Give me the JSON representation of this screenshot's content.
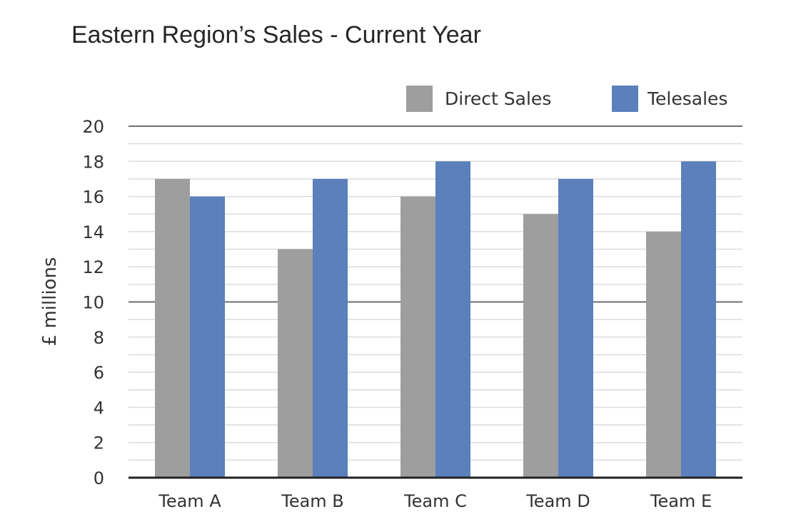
{
  "chart_data": {
    "type": "bar",
    "title": "Eastern Region’s Sales - Current Year",
    "xlabel": "",
    "ylabel": "£ millions",
    "categories": [
      "Team A",
      "Team B",
      "Team C",
      "Team D",
      "Team E"
    ],
    "series": [
      {
        "name": "Direct Sales",
        "values": [
          17,
          13,
          16,
          15,
          14
        ],
        "color": "#9e9e9e"
      },
      {
        "name": "Telesales",
        "values": [
          16,
          17,
          18,
          17,
          18
        ],
        "color": "#5b80bb"
      }
    ],
    "ylim": [
      0,
      20
    ],
    "yticks": [
      "0",
      "2",
      "4",
      "6",
      "8",
      "10",
      "12",
      "14",
      "16",
      "18",
      "20"
    ],
    "grid": true,
    "legend_position": "top-right"
  }
}
